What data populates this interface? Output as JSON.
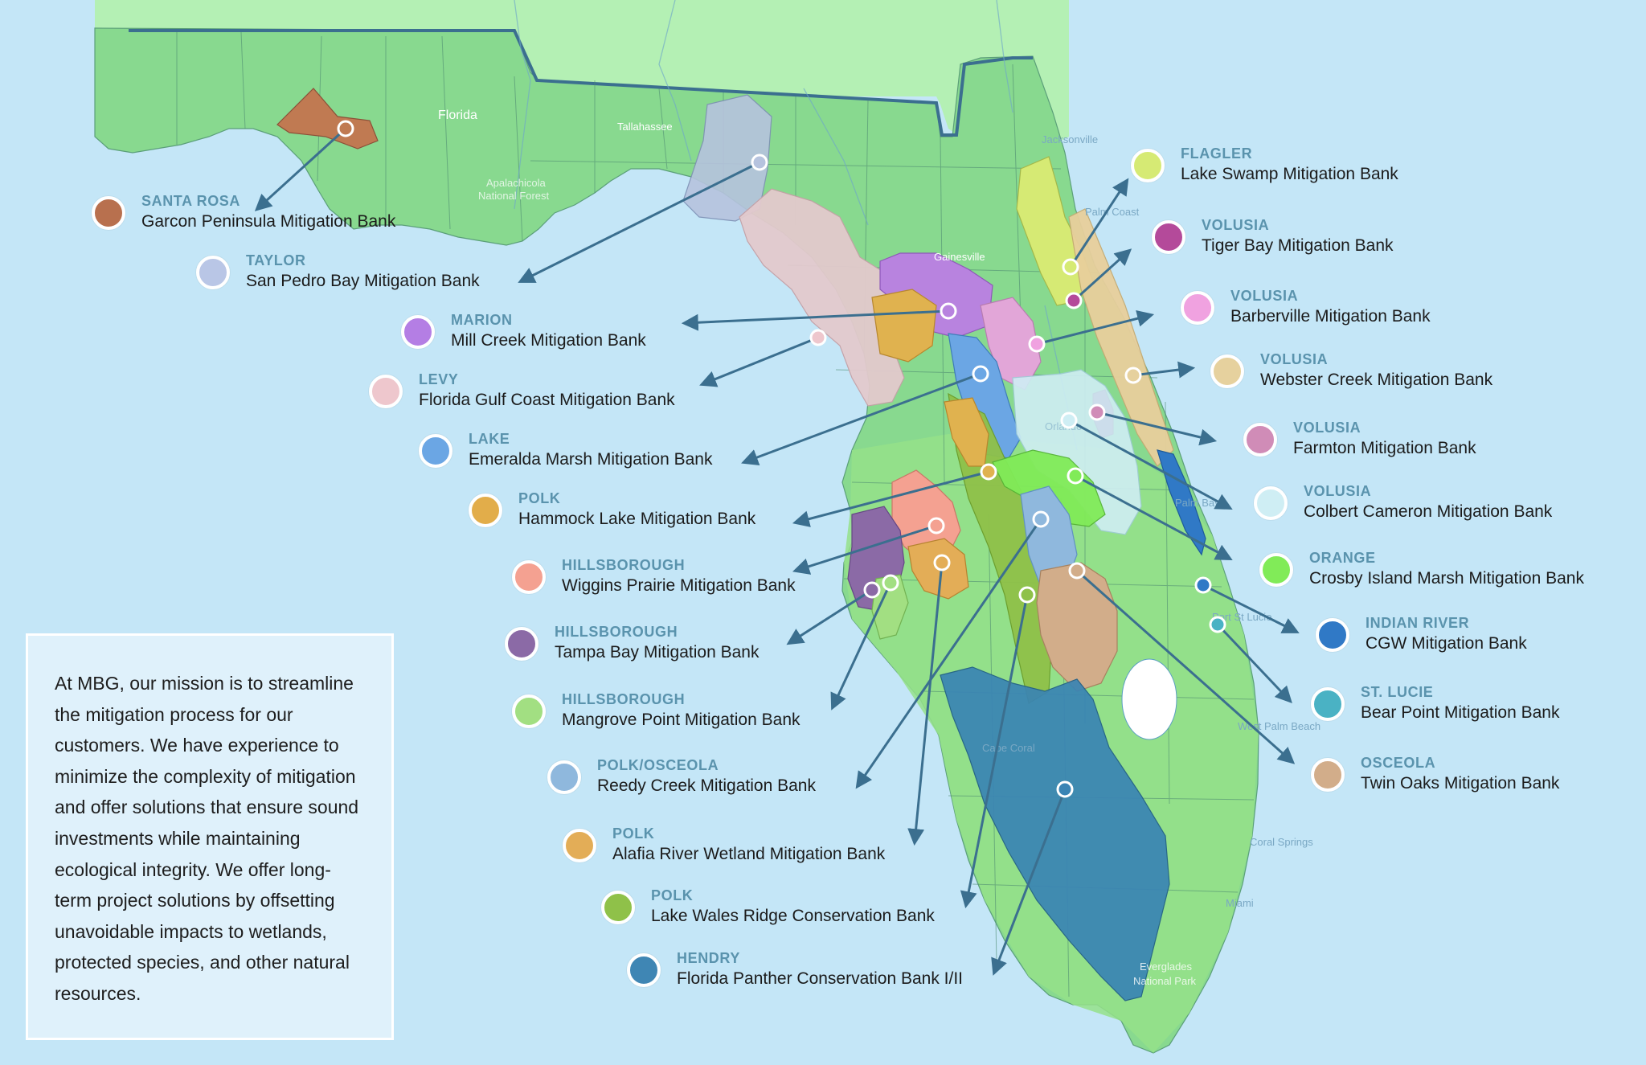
{
  "map_labels": {
    "florida": "Florida",
    "tallahassee": "Tallahassee",
    "apalachicola": "Apalachicola",
    "national_forest": "National Forest",
    "jacksonville": "Jacksonville",
    "palm_coast": "Palm Coast",
    "gainesville": "Gainesville",
    "palm_bay": "Palm Bay",
    "port_st_lucie": "Port St Lucie",
    "west_palm_beach": "West Palm Beach",
    "cape_coral": "Cape Coral",
    "coral_springs": "Coral Springs",
    "miami": "Miami",
    "everglades": "Everglades",
    "national_park": "National Park",
    "orlando": "Orlando"
  },
  "banks": [
    {
      "county": "SANTA ROSA",
      "name": "Garcon Peninsula Mitigation Bank",
      "color": "#b8704e"
    },
    {
      "county": "TAYLOR",
      "name": "San Pedro Bay Mitigation Bank",
      "color": "#b9c6e6"
    },
    {
      "county": "MARION",
      "name": "Mill Creek Mitigation Bank",
      "color": "#b47ee4"
    },
    {
      "county": "LEVY",
      "name": "Florida Gulf Coast Mitigation Bank",
      "color": "#eec7cd"
    },
    {
      "county": "LAKE",
      "name": "Emeralda Marsh Mitigation Bank",
      "color": "#6ba6e4"
    },
    {
      "county": "POLK",
      "name": "Hammock Lake Mitigation Bank",
      "color": "#e2ad4a"
    },
    {
      "county": "HILLSBOROUGH",
      "name": "Wiggins Prairie Mitigation Bank",
      "color": "#f4a191"
    },
    {
      "county": "HILLSBOROUGH",
      "name": "Tampa Bay Mitigation Bank",
      "color": "#8b6aa6"
    },
    {
      "county": "HILLSBOROUGH",
      "name": "Mangrove Point Mitigation Bank",
      "color": "#a2df82"
    },
    {
      "county": "POLK/OSCEOLA",
      "name": "Reedy Creek Mitigation Bank",
      "color": "#8fb8dd"
    },
    {
      "county": "POLK",
      "name": "Alafia River Wetland Mitigation Bank",
      "color": "#e3ad57"
    },
    {
      "county": "POLK",
      "name": "Lake Wales Ridge Conservation Bank",
      "color": "#8fc149"
    },
    {
      "county": "HENDRY",
      "name": "Florida Panther Conservation Bank I/II",
      "color": "#3f86b4"
    },
    {
      "county": "FLAGLER",
      "name": "Lake Swamp Mitigation Bank",
      "color": "#d6ea74"
    },
    {
      "county": "VOLUSIA",
      "name": "Tiger Bay Mitigation Bank",
      "color": "#b44a9a"
    },
    {
      "county": "VOLUSIA",
      "name": "Barberville Mitigation Bank",
      "color": "#f0a2e0"
    },
    {
      "county": "VOLUSIA",
      "name": "Webster Creek Mitigation Bank",
      "color": "#e6d19e"
    },
    {
      "county": "VOLUSIA",
      "name": "Farmton Mitigation Bank",
      "color": "#d08cb7"
    },
    {
      "county": "VOLUSIA",
      "name": "Colbert Cameron Mitigation Bank",
      "color": "#cfeef4"
    },
    {
      "county": "ORANGE",
      "name": "Crosby Island Marsh Mitigation Bank",
      "color": "#81eb58"
    },
    {
      "county": "INDIAN RIVER",
      "name": "CGW Mitigation Bank",
      "color": "#3079c6"
    },
    {
      "county": "ST. LUCIE",
      "name": "Bear Point Mitigation Bank",
      "color": "#4ab2c4"
    },
    {
      "county": "OSCEOLA",
      "name": "Twin Oaks Mitigation Bank",
      "color": "#d2ad8a"
    }
  ],
  "mission": {
    "text": "At MBG, our mission is to streamline the mitigation process for our customers. We have experience to minimize the complexity of mitigation and offer solutions that ensure sound investments while maintaining ecological integrity. We offer long-term project solutions by offsetting unavoidable impacts to wetlands, protected species, and other natural resources."
  },
  "colors": {
    "water": "#c4e6f7",
    "land_north": "#b4f0b4",
    "land_florida": "#88d98f",
    "land_south": "#95e08a",
    "arrow": "#3b6f8f",
    "county_label": "#5a93ad"
  }
}
